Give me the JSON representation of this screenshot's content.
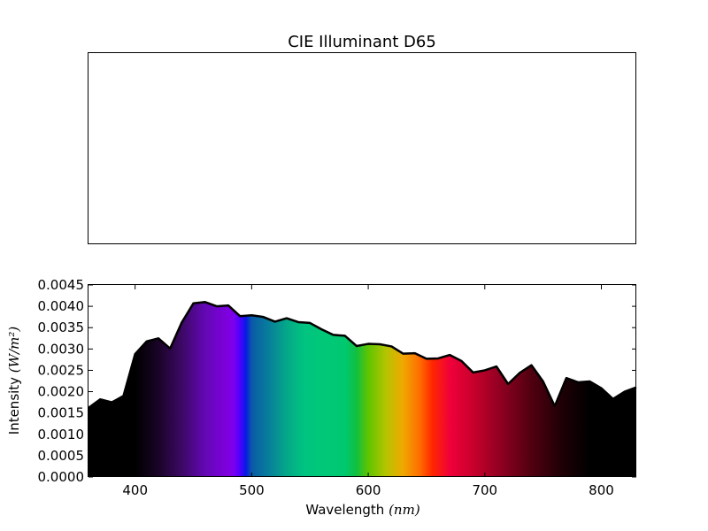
{
  "figure": {
    "title": "CIE Illuminant D65"
  },
  "chart_data": [
    {
      "type": "empty",
      "title": "CIE Illuminant D65"
    },
    {
      "type": "area",
      "xlabel_prefix": "Wavelength ",
      "xlabel_unit": "(nm)",
      "ylabel_prefix": "Intensity ",
      "ylabel_unit": "(W/m²)",
      "xlim": [
        360,
        830
      ],
      "ylim": [
        0,
        0.0045
      ],
      "xticks": [
        400,
        500,
        600,
        700,
        800
      ],
      "xtick_labels": [
        "400",
        "500",
        "600",
        "700",
        "800"
      ],
      "yticks": [
        0,
        0.0005,
        0.001,
        0.0015,
        0.002,
        0.0025,
        0.003,
        0.0035,
        0.004,
        0.0045
      ],
      "ytick_labels": [
        "0.0000",
        "0.0005",
        "0.0010",
        "0.0015",
        "0.0020",
        "0.0025",
        "0.0030",
        "0.0035",
        "0.0040",
        "0.0045"
      ],
      "fill": "visible-spectrum gradient (black outside the visible band)",
      "line_color": "#000000",
      "x": [
        360,
        370,
        380,
        390,
        400,
        410,
        420,
        430,
        440,
        450,
        460,
        470,
        480,
        490,
        500,
        510,
        520,
        530,
        540,
        550,
        560,
        570,
        580,
        590,
        600,
        610,
        620,
        630,
        640,
        650,
        660,
        670,
        680,
        690,
        700,
        710,
        720,
        730,
        740,
        750,
        760,
        770,
        780,
        790,
        800,
        810,
        820,
        830
      ],
      "y": [
        0.00162,
        0.00182,
        0.00175,
        0.0019,
        0.00288,
        0.00318,
        0.00325,
        0.00301,
        0.00362,
        0.00407,
        0.0041,
        0.004,
        0.00402,
        0.00377,
        0.00379,
        0.00375,
        0.00364,
        0.00372,
        0.00363,
        0.00361,
        0.00346,
        0.00333,
        0.00331,
        0.00307,
        0.00312,
        0.00311,
        0.00306,
        0.00289,
        0.0029,
        0.00277,
        0.00278,
        0.00286,
        0.00272,
        0.00245,
        0.0025,
        0.00259,
        0.00218,
        0.00244,
        0.00262,
        0.00224,
        0.00166,
        0.00232,
        0.00222,
        0.00224,
        0.00208,
        0.00183,
        0.002,
        0.0021
      ]
    }
  ]
}
